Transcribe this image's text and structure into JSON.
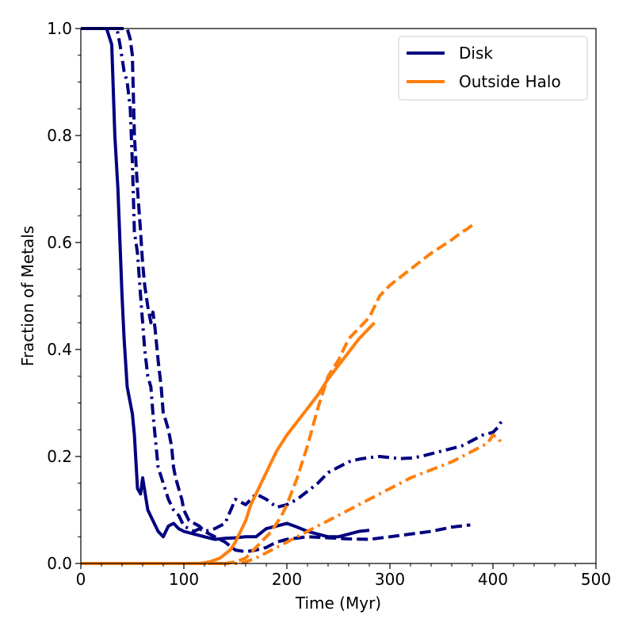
{
  "chart_data": {
    "type": "line",
    "title": "",
    "xlabel": "Time (Myr)",
    "ylabel": "Fraction of Metals",
    "xlim": [
      0,
      500
    ],
    "ylim": [
      0.0,
      1.0
    ],
    "xticks": [
      0,
      100,
      200,
      300,
      400,
      500
    ],
    "xtick_labels": [
      "0",
      "100",
      "200",
      "300",
      "400",
      "500"
    ],
    "yticks": [
      0.0,
      0.2,
      0.4,
      0.6,
      0.8,
      1.0
    ],
    "ytick_labels": [
      "0.0",
      "0.2",
      "0.4",
      "0.6",
      "0.8",
      "1.0"
    ],
    "grid": false,
    "legend": {
      "placement": "top-right",
      "entries": [
        {
          "label": "Disk",
          "color": "#000080"
        },
        {
          "label": "Outside Halo",
          "color": "#ff7f0e"
        }
      ]
    },
    "series": [
      {
        "group": "Disk",
        "color": "#000080",
        "linestyle": "solid",
        "x": [
          0,
          25,
          30,
          33,
          36,
          38,
          40,
          42,
          45,
          48,
          50,
          52,
          55,
          58,
          60,
          65,
          70,
          75,
          80,
          85,
          90,
          95,
          100,
          110,
          120,
          130,
          140,
          150,
          160,
          170,
          180,
          190,
          200,
          210,
          220,
          230,
          240,
          250,
          260,
          270,
          280
        ],
        "y": [
          1.0,
          1.0,
          0.97,
          0.8,
          0.7,
          0.6,
          0.5,
          0.42,
          0.33,
          0.3,
          0.28,
          0.24,
          0.14,
          0.13,
          0.16,
          0.1,
          0.08,
          0.06,
          0.05,
          0.07,
          0.075,
          0.065,
          0.06,
          0.055,
          0.05,
          0.045,
          0.047,
          0.048,
          0.05,
          0.05,
          0.065,
          0.07,
          0.075,
          0.068,
          0.06,
          0.055,
          0.05,
          0.05,
          0.055,
          0.06,
          0.062
        ]
      },
      {
        "group": "Disk",
        "color": "#000080",
        "linestyle": "dashdot",
        "x": [
          0,
          35,
          38,
          42,
          45,
          48,
          50,
          52,
          55,
          58,
          60,
          62,
          65,
          68,
          70,
          72,
          75,
          80,
          85,
          90,
          95,
          100,
          105,
          110,
          115,
          120,
          130,
          140,
          150,
          160,
          170,
          180,
          190,
          200,
          210,
          220,
          230,
          240,
          250,
          260,
          270,
          280,
          290,
          300,
          310,
          320,
          330,
          340,
          350,
          360,
          370,
          380,
          390,
          400,
          405,
          408
        ],
        "y": [
          1.0,
          1.0,
          0.97,
          0.92,
          0.9,
          0.85,
          0.75,
          0.62,
          0.58,
          0.5,
          0.45,
          0.4,
          0.35,
          0.33,
          0.28,
          0.24,
          0.18,
          0.15,
          0.12,
          0.1,
          0.09,
          0.07,
          0.065,
          0.06,
          0.065,
          0.06,
          0.065,
          0.075,
          0.12,
          0.11,
          0.13,
          0.12,
          0.105,
          0.11,
          0.12,
          0.135,
          0.15,
          0.17,
          0.18,
          0.19,
          0.195,
          0.198,
          0.2,
          0.198,
          0.196,
          0.197,
          0.2,
          0.205,
          0.21,
          0.215,
          0.22,
          0.23,
          0.24,
          0.245,
          0.255,
          0.265
        ]
      },
      {
        "group": "Disk",
        "color": "#000080",
        "linestyle": "dashed",
        "x": [
          0,
          45,
          48,
          50,
          52,
          55,
          58,
          60,
          62,
          65,
          68,
          70,
          72,
          75,
          78,
          80,
          82,
          85,
          88,
          90,
          92,
          95,
          98,
          100,
          105,
          110,
          115,
          120,
          130,
          140,
          150,
          160,
          170,
          180,
          190,
          200,
          220,
          240,
          260,
          280,
          300,
          320,
          340,
          360,
          378
        ],
        "y": [
          1.0,
          1.0,
          0.98,
          0.95,
          0.8,
          0.7,
          0.62,
          0.56,
          0.52,
          0.48,
          0.45,
          0.47,
          0.44,
          0.38,
          0.33,
          0.28,
          0.27,
          0.25,
          0.22,
          0.18,
          0.16,
          0.14,
          0.12,
          0.1,
          0.08,
          0.075,
          0.07,
          0.06,
          0.05,
          0.04,
          0.025,
          0.022,
          0.025,
          0.03,
          0.04,
          0.045,
          0.05,
          0.048,
          0.046,
          0.045,
          0.05,
          0.055,
          0.06,
          0.068,
          0.072
        ]
      },
      {
        "group": "Outside Halo",
        "color": "#ff7f0e",
        "linestyle": "solid",
        "x": [
          0,
          115,
          125,
          135,
          145,
          150,
          155,
          160,
          165,
          170,
          175,
          180,
          185,
          190,
          195,
          200,
          210,
          220,
          230,
          240,
          250,
          260,
          270,
          280,
          285
        ],
        "y": [
          0.0,
          0.0,
          0.003,
          0.01,
          0.025,
          0.04,
          0.06,
          0.08,
          0.11,
          0.13,
          0.15,
          0.17,
          0.19,
          0.21,
          0.225,
          0.24,
          0.265,
          0.29,
          0.315,
          0.345,
          0.37,
          0.395,
          0.42,
          0.44,
          0.45
        ]
      },
      {
        "group": "Outside Halo",
        "color": "#ff7f0e",
        "linestyle": "dashed",
        "x": [
          0,
          140,
          150,
          160,
          165,
          170,
          175,
          180,
          185,
          190,
          195,
          200,
          210,
          220,
          230,
          240,
          250,
          260,
          270,
          280,
          290,
          300,
          320,
          340,
          360,
          370,
          375,
          378,
          380,
          383
        ],
        "y": [
          0.0,
          0.0,
          0.003,
          0.01,
          0.02,
          0.03,
          0.04,
          0.05,
          0.06,
          0.075,
          0.09,
          0.11,
          0.16,
          0.22,
          0.29,
          0.35,
          0.38,
          0.42,
          0.44,
          0.46,
          0.5,
          0.52,
          0.55,
          0.58,
          0.605,
          0.62,
          0.625,
          0.63,
          0.632,
          0.63
        ]
      },
      {
        "group": "Outside Halo",
        "color": "#ff7f0e",
        "linestyle": "dashdot",
        "x": [
          0,
          155,
          160,
          170,
          180,
          190,
          200,
          220,
          240,
          260,
          280,
          300,
          320,
          340,
          360,
          380,
          395,
          400,
          405,
          410
        ],
        "y": [
          0.0,
          0.0,
          0.003,
          0.01,
          0.02,
          0.03,
          0.04,
          0.06,
          0.08,
          0.1,
          0.12,
          0.14,
          0.16,
          0.175,
          0.19,
          0.21,
          0.225,
          0.24,
          0.235,
          0.22
        ]
      }
    ]
  }
}
